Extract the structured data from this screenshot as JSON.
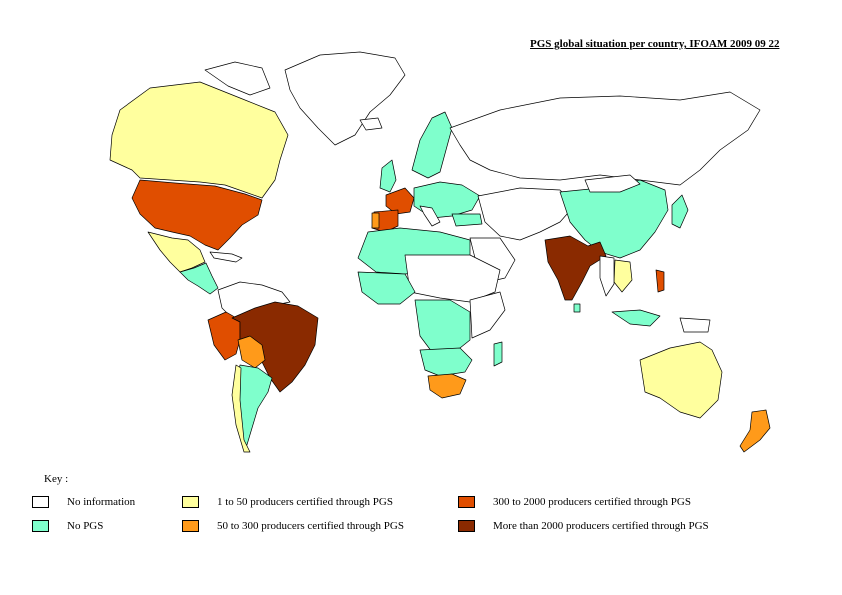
{
  "title": "PGS global situation per country, IFOAM 2009 09 22",
  "key_label": "Key :",
  "colors": {
    "none": "#ffffff",
    "no_pgs": "#7fffcc",
    "c1": "#ffff9e",
    "c2": "#ff9a1a",
    "c3": "#e04e00",
    "c4": "#8a2a00"
  },
  "legend": [
    {
      "label": "No information",
      "color": "#ffffff"
    },
    {
      "label": "No PGS",
      "color": "#7fffcc"
    },
    {
      "label": "1 to 50 producers certified through PGS",
      "color": "#ffff9e"
    },
    {
      "label": "50 to 300 producers certified through PGS",
      "color": "#ff9a1a"
    },
    {
      "label": "300 to 2000 producers certified through PGS",
      "color": "#e04e00"
    },
    {
      "label": "More than 2000 producers certified through PGS",
      "color": "#8a2a00"
    }
  ]
}
